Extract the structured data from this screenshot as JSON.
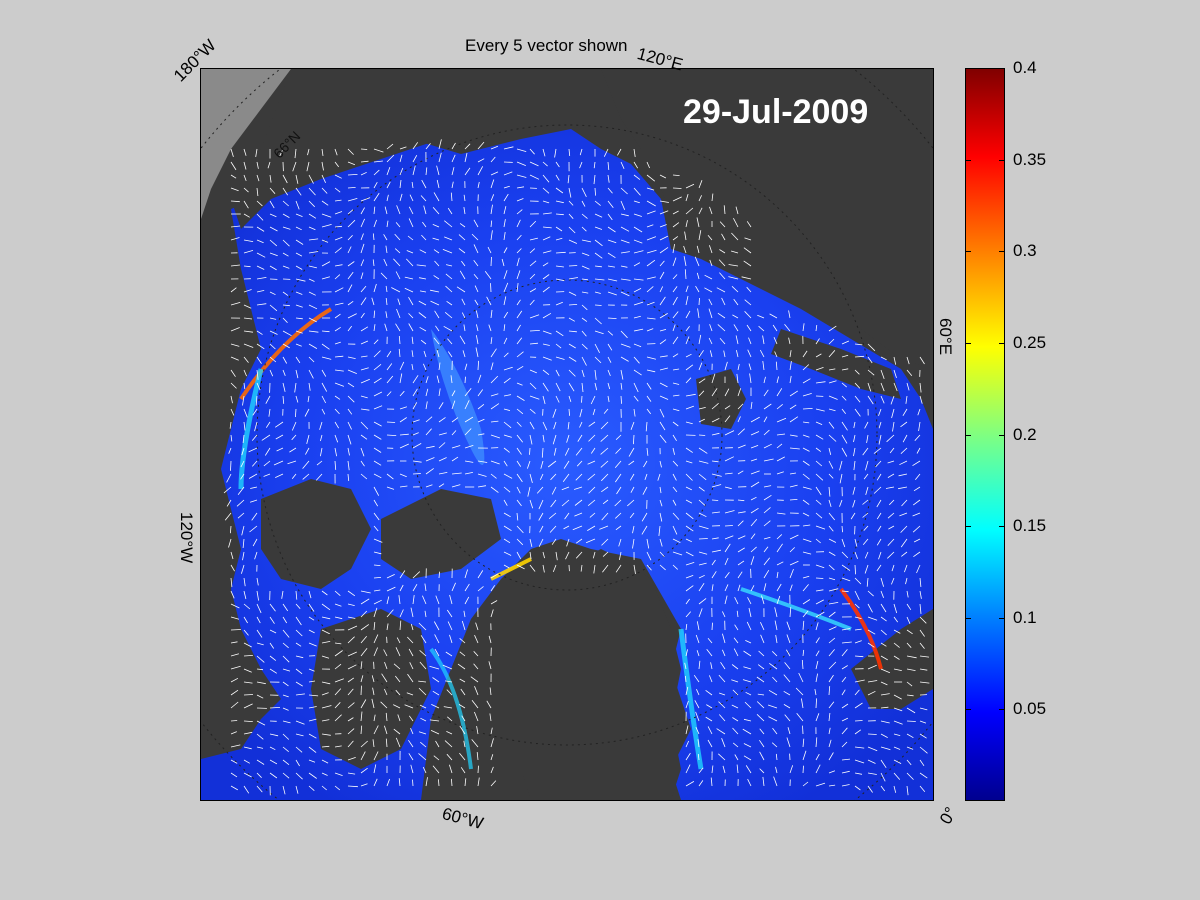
{
  "header": {
    "title": "Every 5 vector shown"
  },
  "map": {
    "date": "29-Jul-2009",
    "colormap": "jet",
    "ocean_color": "#1a3cf0",
    "land_color": "#3a3a3a",
    "vector_color": "#ffffff",
    "graticule_labels": {
      "lon_180w": "180°W",
      "lon_120e": "120°E",
      "lon_60e": "60°E",
      "lon_120w": "120°W",
      "lon_60w": "60°W",
      "lon_0": "0°",
      "lat_66n": "66°N"
    }
  },
  "colorbar": {
    "min": 0,
    "max": 0.4,
    "ticks": [
      "0.4",
      "0.35",
      "0.3",
      "0.25",
      "0.2",
      "0.15",
      "0.1",
      "0.05"
    ],
    "tick_values": [
      0.4,
      0.35,
      0.3,
      0.25,
      0.2,
      0.15,
      0.1,
      0.05
    ]
  }
}
